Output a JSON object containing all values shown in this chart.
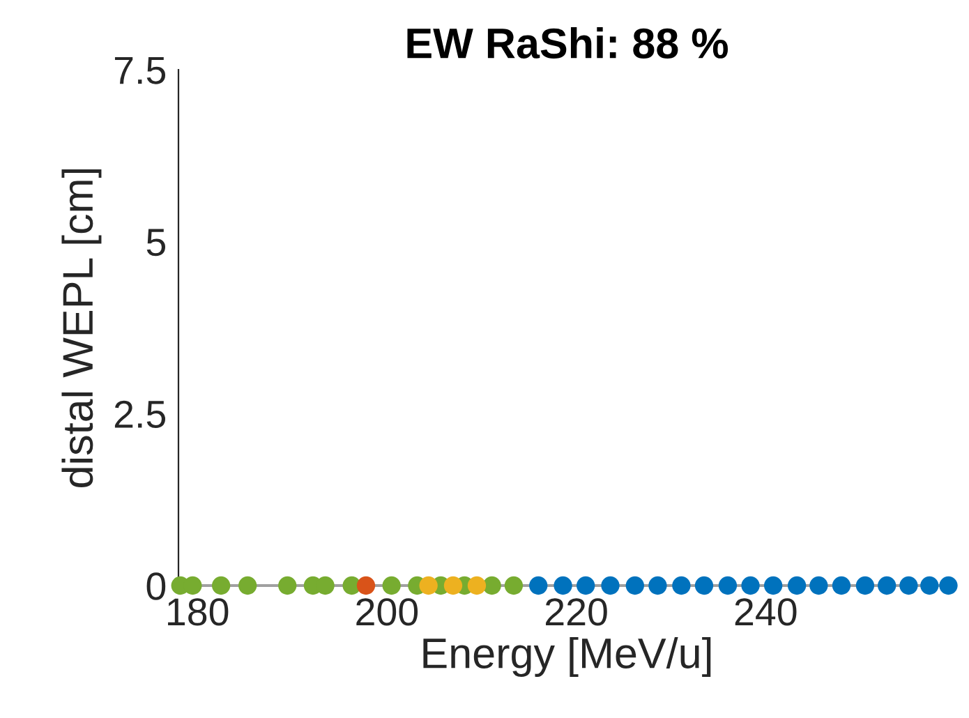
{
  "chart_data": {
    "type": "scatter",
    "title": "EW RaShi: 88 %",
    "xlabel": "Energy [MeV/u]",
    "ylabel": "distal WEPL [cm]",
    "xlim": [
      178,
      260
    ],
    "xticks": [
      180,
      200,
      220,
      240
    ],
    "ylim": [
      0,
      7.5
    ],
    "yticks": [
      0,
      2.5,
      5,
      7.5
    ],
    "marker": "circle",
    "grid": false,
    "legend": false,
    "series": [
      {
        "color": "#77ac30",
        "x": [
          178.2,
          179.5,
          182.5,
          185.3,
          189.5,
          192.2,
          193.5,
          196.3,
          200.5,
          203.2,
          205.7,
          208.2,
          211.1,
          213.4
        ],
        "values": [
          0,
          0,
          0,
          0,
          0,
          0,
          0,
          0,
          0,
          0,
          0,
          0,
          0,
          0
        ]
      },
      {
        "color": "#d95319",
        "x": [
          197.8
        ],
        "values": [
          0
        ]
      },
      {
        "color": "#edb120",
        "x": [
          204.4,
          207.0,
          209.5
        ],
        "values": [
          0,
          0,
          0
        ]
      },
      {
        "color": "#0072bd",
        "x": [
          216.0,
          218.6,
          221.0,
          223.6,
          226.2,
          228.6,
          231.1,
          233.5,
          236.0,
          238.4,
          240.8,
          243.3,
          245.6,
          248.0,
          250.5,
          252.8,
          255.1,
          257.3,
          259.3
        ],
        "values": [
          0,
          0,
          0,
          0,
          0,
          0,
          0,
          0,
          0,
          0,
          0,
          0,
          0,
          0,
          0,
          0,
          0,
          0,
          0
        ]
      }
    ]
  }
}
